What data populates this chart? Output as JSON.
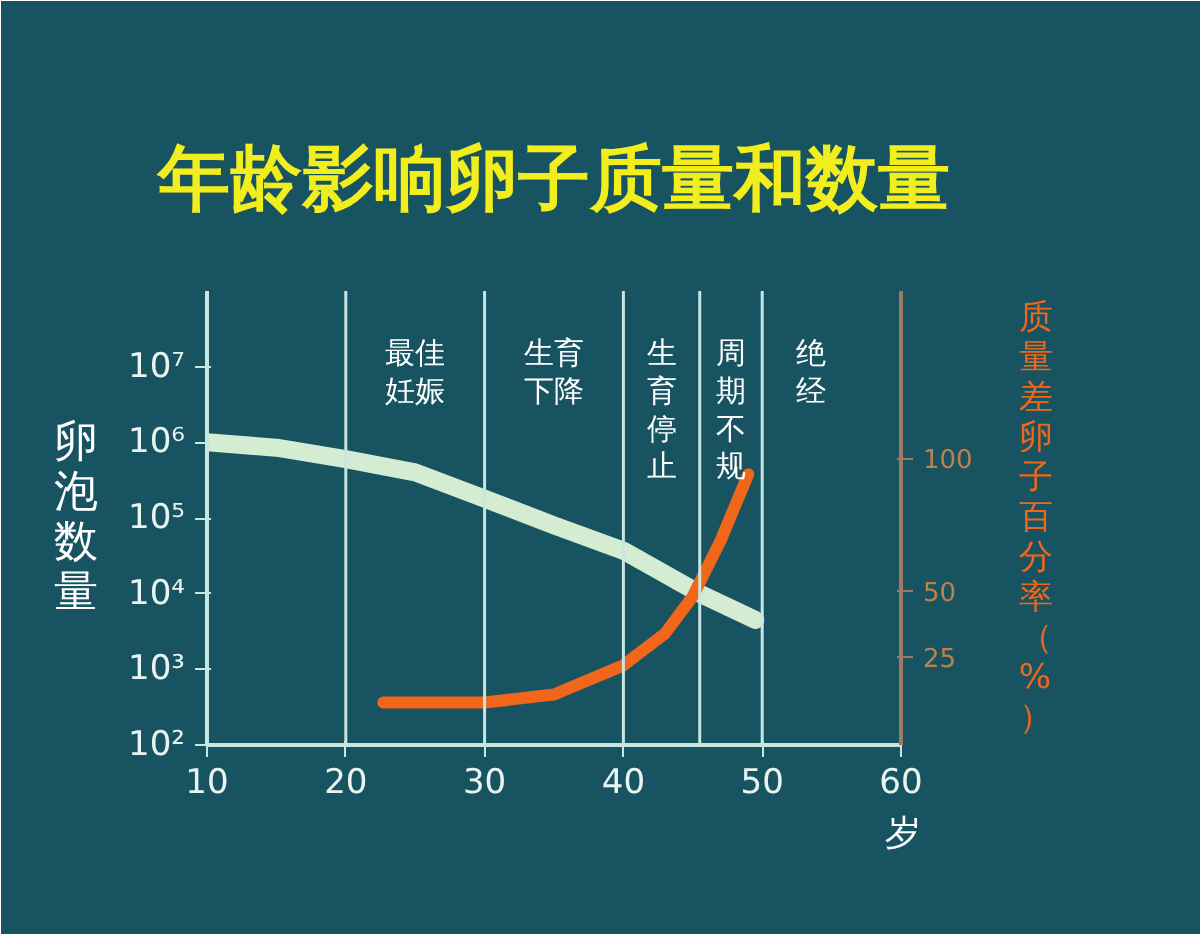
{
  "chart_data": {
    "type": "line",
    "title": "年龄影响卵子质量和数量",
    "ylabel": "卵泡数量",
    "xlabel": "岁",
    "y2label": "质量差卵子百分率（%）",
    "xlim": [
      10,
      60
    ],
    "xticks": [
      10,
      20,
      30,
      40,
      50,
      60
    ],
    "ylim": [
      100,
      100000000
    ],
    "yticks": [
      {
        "value": 100,
        "label": "10²"
      },
      {
        "value": 1000,
        "label": "10³"
      },
      {
        "value": 10000,
        "label": "10⁴"
      },
      {
        "value": 100000,
        "label": "10⁵"
      },
      {
        "value": 1000000,
        "label": "10⁶"
      },
      {
        "value": 10000000,
        "label": "10⁷"
      }
    ],
    "y2lim": [
      -8,
      163
    ],
    "y2ticks": [
      25,
      50,
      100
    ],
    "log": "y",
    "grid": false,
    "marker": "none",
    "line_style": "solid",
    "series": [
      {
        "color": "#d4ecd2",
        "x": [
          10,
          15,
          20,
          25,
          30,
          35,
          40,
          45.5,
          49.5
        ],
        "values": [
          1000000,
          850000,
          600000,
          400000,
          180000,
          80000,
          37000,
          10000,
          4500
        ]
      },
      {
        "color": "#f0671c",
        "axis": "y2",
        "x": [
          22.7,
          26,
          30,
          35,
          40,
          43,
          45,
          47,
          49
        ],
        "values": [
          8,
          8,
          8,
          11,
          22,
          34,
          48,
          69,
          94
        ]
      }
    ],
    "ref_lines": [
      {
        "axis": "x",
        "value": 20,
        "color": "#c8e6e0",
        "label": "最佳妊娠"
      },
      {
        "axis": "x",
        "value": 30,
        "color": "#c8e6e0",
        "label": "生育下降"
      },
      {
        "axis": "x",
        "value": 40,
        "color": "#c8e6e0",
        "label": "生育停止"
      },
      {
        "axis": "x",
        "value": 45.5,
        "color": "#c8e6e0",
        "label": "周期不规"
      },
      {
        "axis": "x",
        "value": 50,
        "color": "#c8e6e0",
        "label": "绝经"
      }
    ]
  }
}
